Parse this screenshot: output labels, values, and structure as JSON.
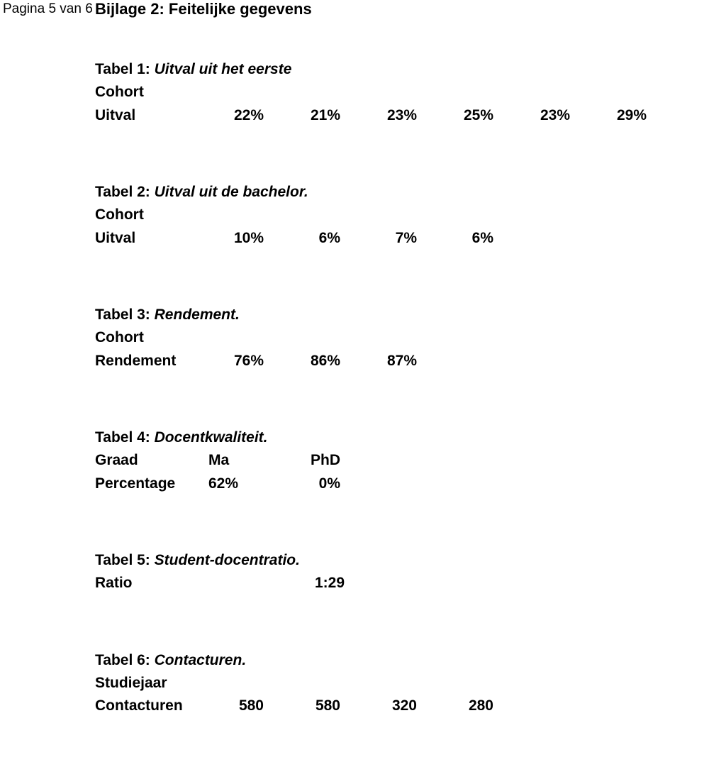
{
  "page_marker": "Pagina 5 van 6",
  "heading": "Bijlage 2: Feitelijke gegevens",
  "table1": {
    "title_prefix": "Tabel 1: ",
    "title_italic": "Uitval uit het eerste",
    "row1_label": "Cohort",
    "row2_label": "Uitval",
    "values": [
      "22%",
      "21%",
      "23%",
      "25%",
      "23%",
      "29%"
    ]
  },
  "table2": {
    "title_prefix": "Tabel 2: ",
    "title_italic": "Uitval uit de bachelor.",
    "row1_label": "Cohort",
    "row2_label": "Uitval",
    "values": [
      "10%",
      "6%",
      "7%",
      "6%"
    ]
  },
  "table3": {
    "title_prefix": "Tabel 3: ",
    "title_italic": "Rendement.",
    "row1_label": "Cohort",
    "row2_label": "Rendement",
    "values": [
      "76%",
      "86%",
      "87%"
    ]
  },
  "table4": {
    "title_prefix": "Tabel 4: ",
    "title_italic": "Docentkwaliteit.",
    "row1_label": "Graad",
    "row1_values": [
      "Ma",
      "PhD"
    ],
    "row2_label": "Percentage",
    "row2_values": [
      "62%",
      "0%"
    ]
  },
  "table5": {
    "title_prefix": "Tabel 5: ",
    "title_italic": "Student-docentratio.",
    "row_label": "Ratio",
    "value": "1:29"
  },
  "table6": {
    "title_prefix": "Tabel 6: ",
    "title_italic": "Contacturen.",
    "row1_label": "Studiejaar",
    "row2_label": "Contacturen",
    "values": [
      "580",
      "580",
      "320",
      "280"
    ]
  }
}
